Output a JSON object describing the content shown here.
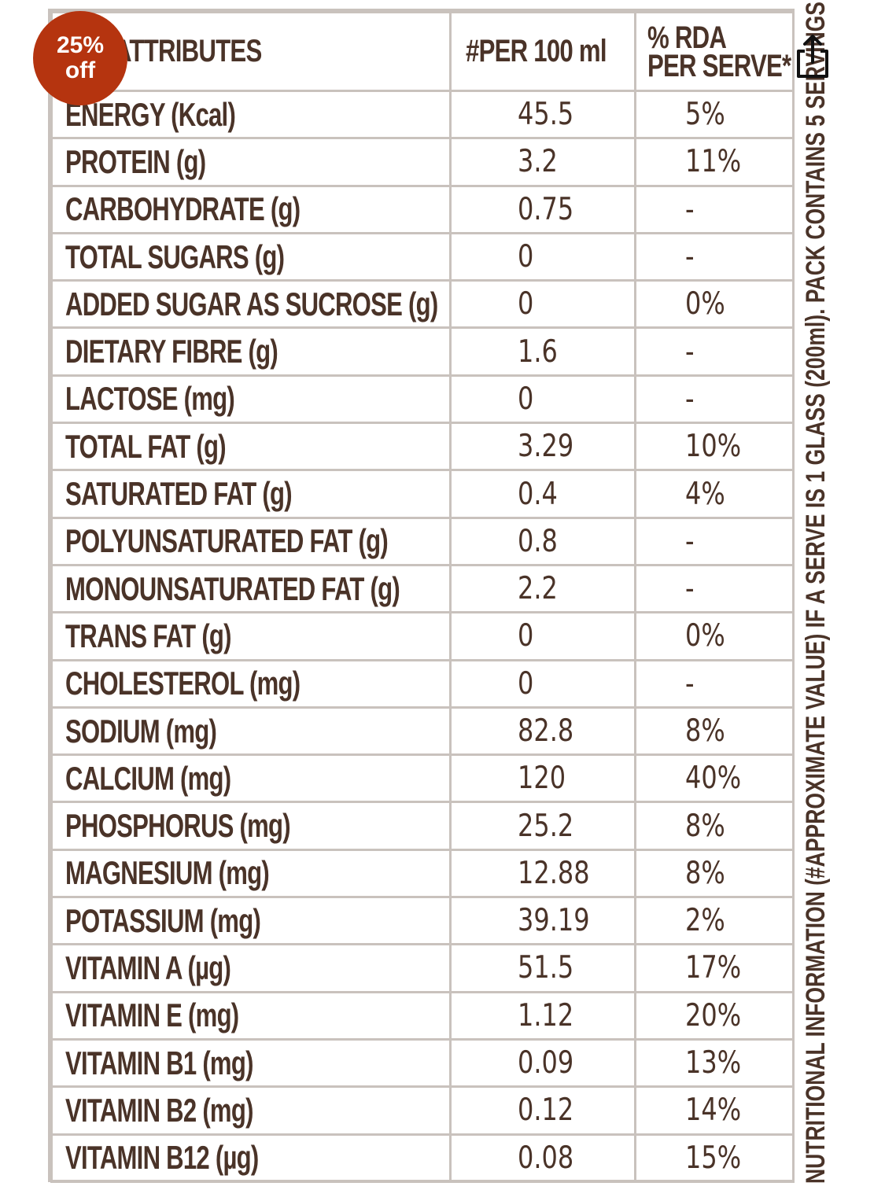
{
  "badge": {
    "percent": "25%",
    "label": "off"
  },
  "table": {
    "headers": [
      "ATTRIBUTES",
      "#PER 100 ml",
      "% RDA",
      "PER SERVE*"
    ],
    "rows": [
      {
        "attribute": "ENERGY (Kcal)",
        "per100": "45.5",
        "rda": "5%"
      },
      {
        "attribute": "PROTEIN (g)",
        "per100": "3.2",
        "rda": "11%"
      },
      {
        "attribute": "CARBOHYDRATE (g)",
        "per100": "0.75",
        "rda": "-"
      },
      {
        "attribute": "TOTAL SUGARS (g)",
        "per100": "0",
        "rda": "-"
      },
      {
        "attribute": "ADDED SUGAR AS SUCROSE (g)",
        "per100": "0",
        "rda": "0%"
      },
      {
        "attribute": "DIETARY FIBRE (g)",
        "per100": "1.6",
        "rda": "-"
      },
      {
        "attribute": "LACTOSE (mg)",
        "per100": "0",
        "rda": "-"
      },
      {
        "attribute": "TOTAL FAT (g)",
        "per100": "3.29",
        "rda": "10%"
      },
      {
        "attribute": "SATURATED FAT (g)",
        "per100": "0.4",
        "rda": "4%"
      },
      {
        "attribute": "POLYUNSATURATED FAT (g)",
        "per100": "0.8",
        "rda": "-"
      },
      {
        "attribute": "MONOUNSATURATED FAT (g)",
        "per100": "2.2",
        "rda": "-"
      },
      {
        "attribute": "TRANS FAT (g)",
        "per100": "0",
        "rda": "0%"
      },
      {
        "attribute": "CHOLESTEROL (mg)",
        "per100": "0",
        "rda": "-"
      },
      {
        "attribute": "SODIUM (mg)",
        "per100": "82.8",
        "rda": "8%"
      },
      {
        "attribute": "CALCIUM (mg)",
        "per100": "120",
        "rda": "40%"
      },
      {
        "attribute": "PHOSPHORUS (mg)",
        "per100": "25.2",
        "rda": "8%"
      },
      {
        "attribute": "MAGNESIUM (mg)",
        "per100": "12.88",
        "rda": "8%"
      },
      {
        "attribute": "POTASSIUM (mg)",
        "per100": "39.19",
        "rda": "2%"
      },
      {
        "attribute": "VITAMIN A (µg)",
        "per100": "51.5",
        "rda": "17%"
      },
      {
        "attribute": "VITAMIN E (mg)",
        "per100": "1.12",
        "rda": "20%"
      },
      {
        "attribute": "VITAMIN B1 (mg)",
        "per100": "0.09",
        "rda": "13%"
      },
      {
        "attribute": "VITAMIN B2 (mg)",
        "per100": "0.12",
        "rda": "14%"
      },
      {
        "attribute": "VITAMIN B12 (µg)",
        "per100": "0.08",
        "rda": "15%"
      }
    ]
  },
  "side_note": "NUTRITIONAL INFORMATION (#APPROXIMATE VALUE)    IF A SERVE IS 1 GLASS (200ml). PACK CONTAINS 5 SERVINGS",
  "icons": {
    "share": "share-icon"
  },
  "colors": {
    "text": "#4a3328",
    "border": "#c9c2bd",
    "badge": "#b5340f"
  }
}
